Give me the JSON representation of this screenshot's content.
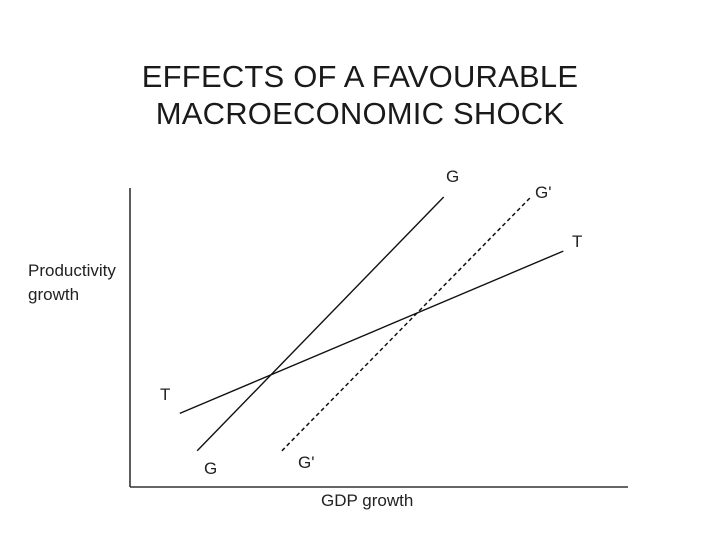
{
  "title": {
    "line1": "EFFECTS OF A FAVOURABLE",
    "line2": "MACROECONOMIC SHOCK"
  },
  "chart_data": {
    "type": "line",
    "title": "EFFECTS OF A FAVOURABLE MACROECONOMIC SHOCK",
    "xlabel": "GDP growth",
    "ylabel": "Productivity growth",
    "ylabel_lines": [
      "Productivity",
      "growth"
    ],
    "grid": false,
    "legend": "none",
    "xlim": [
      0,
      100
    ],
    "ylim": [
      0,
      100
    ],
    "series": [
      {
        "name": "G",
        "style": "solid",
        "color": "#111111",
        "points": [
          [
            13.5,
            12.1
          ],
          [
            63,
            97
          ]
        ],
        "label_start": "G",
        "label_end": "G"
      },
      {
        "name": "G'",
        "style": "dashed",
        "color": "#111111",
        "points": [
          [
            30.5,
            12.1
          ],
          [
            80.5,
            97
          ]
        ],
        "label_start": "G'",
        "label_end": "G'"
      },
      {
        "name": "T",
        "style": "solid",
        "color": "#111111",
        "points": [
          [
            10,
            24.6
          ],
          [
            87,
            78.9
          ]
        ],
        "label_start": "T",
        "label_end": "T"
      }
    ]
  }
}
